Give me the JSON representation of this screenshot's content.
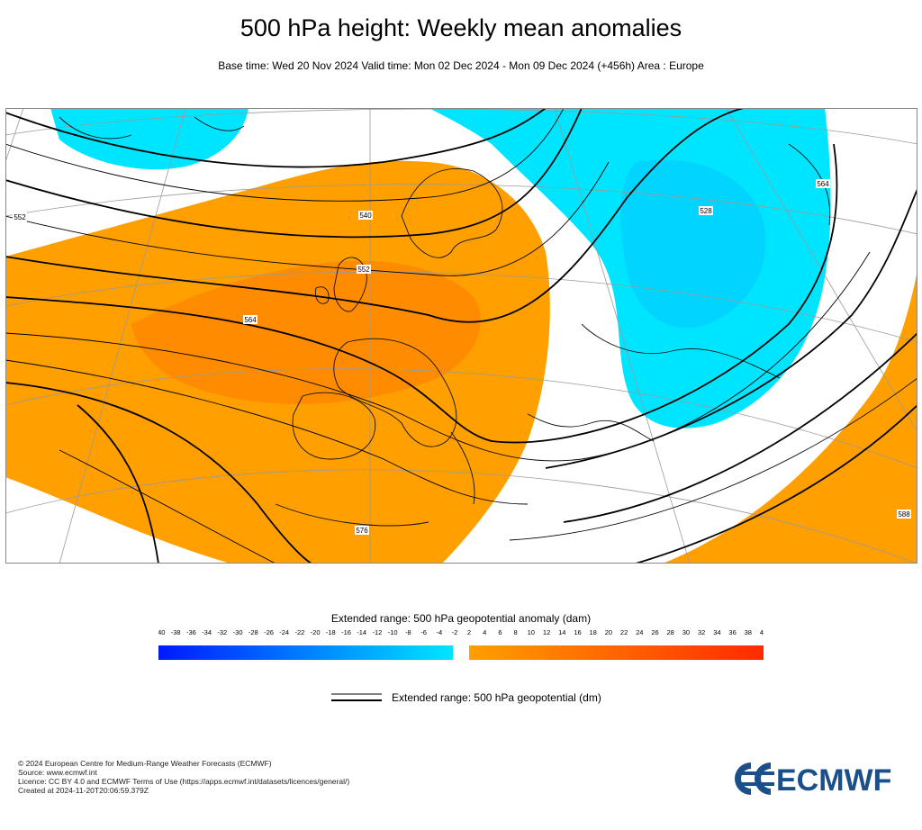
{
  "header": {
    "title": "500 hPa height: Weekly mean anomalies",
    "subtitle": "Base time: Wed 20 Nov 2024 Valid time: Mon 02 Dec 2024 - Mon 09 Dec 2024 (+456h) Area : Europe"
  },
  "map": {
    "area": "Europe",
    "contour_labels": [
      "552",
      "564",
      "576",
      "588",
      "540",
      "528",
      "552",
      "564",
      "576",
      "588"
    ],
    "colors": {
      "positive_anomaly": "#ff9f00",
      "strong_positive_anomaly": "#ff7f00",
      "negative_anomaly": "#00e5ff",
      "strong_negative_anomaly": "#00c4ff",
      "contour": "#000000",
      "coast": "#000000",
      "grid": "#9a9a9a"
    }
  },
  "legend": {
    "title": "Extended range: 500 hPa geopotential anomaly (dam)",
    "ticks": [
      "-40",
      "-38",
      "-36",
      "-34",
      "-32",
      "-30",
      "-28",
      "-26",
      "-24",
      "-22",
      "-20",
      "-18",
      "-16",
      "-14",
      "-12",
      "-10",
      "-8",
      "-6",
      "-4",
      "-2",
      "2",
      "4",
      "6",
      "8",
      "10",
      "12",
      "14",
      "16",
      "18",
      "20",
      "22",
      "24",
      "26",
      "28",
      "30",
      "32",
      "34",
      "36",
      "38",
      "40"
    ],
    "negative_colors": [
      "#0019ff",
      "#00e5ff"
    ],
    "positive_colors": [
      "#ff9f00",
      "#ff2a00"
    ]
  },
  "contour_legend": {
    "label": "Extended range: 500 hPa geopotential (dm)"
  },
  "footer": {
    "lines": [
      "© 2024 European Centre for Medium-Range Weather Forecasts (ECMWF)",
      "Source: www.ecmwf.int",
      "Licence: CC BY 4.0 and ECMWF Terms of Use (https://apps.ecmwf.int/datasets/licences/general/)",
      "Created at 2024-11-20T20:06:59.379Z"
    ]
  },
  "logo": {
    "text": "ECMWF",
    "color": "#1a4f8a"
  }
}
